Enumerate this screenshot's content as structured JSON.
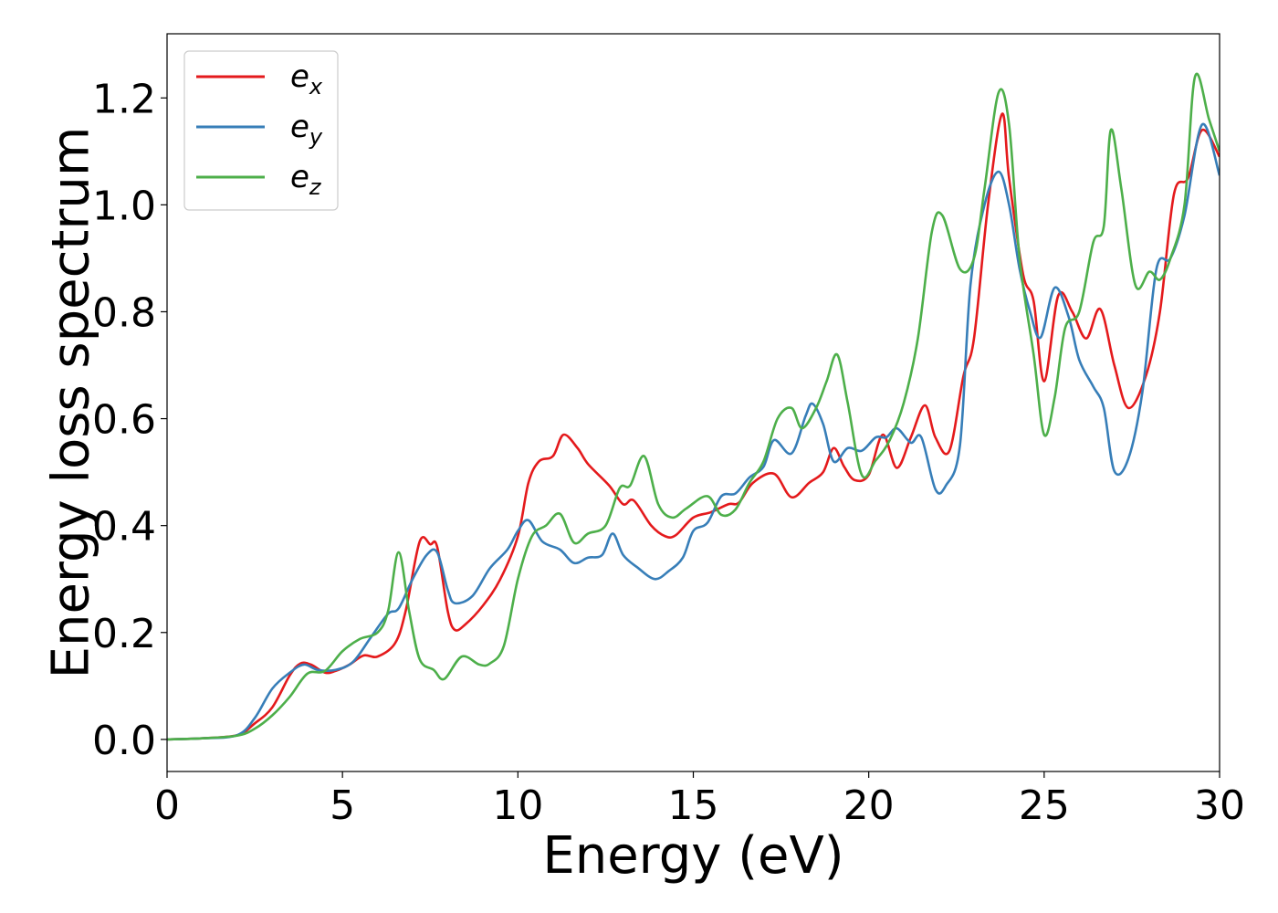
{
  "chart_data": {
    "type": "line",
    "title": "",
    "xlabel": "Energy (eV)",
    "ylabel": "Energy loss spectrum",
    "xlim": [
      0,
      30
    ],
    "ylim": [
      -0.06,
      1.32
    ],
    "xticks": [
      "0",
      "5",
      "10",
      "15",
      "20",
      "25",
      "30"
    ],
    "yticks": [
      "0.0",
      "0.2",
      "0.4",
      "0.6",
      "0.8",
      "1.0",
      "1.2"
    ],
    "grid": false,
    "legend_position": "top-left",
    "series": [
      {
        "name": "e_x",
        "label_base": "e",
        "label_sub": "x",
        "color": "#e41a1c",
        "points": [
          [
            0,
            0
          ],
          [
            1,
            0.002
          ],
          [
            2,
            0.008
          ],
          [
            2.5,
            0.03
          ],
          [
            3,
            0.06
          ],
          [
            3.5,
            0.12
          ],
          [
            3.8,
            0.142
          ],
          [
            4.1,
            0.14
          ],
          [
            4.5,
            0.125
          ],
          [
            4.8,
            0.128
          ],
          [
            5.2,
            0.14
          ],
          [
            5.6,
            0.157
          ],
          [
            6,
            0.155
          ],
          [
            6.5,
            0.18
          ],
          [
            6.8,
            0.24
          ],
          [
            7.2,
            0.37
          ],
          [
            7.5,
            0.365
          ],
          [
            7.7,
            0.36
          ],
          [
            8,
            0.24
          ],
          [
            8.2,
            0.205
          ],
          [
            8.5,
            0.215
          ],
          [
            9,
            0.25
          ],
          [
            9.5,
            0.3
          ],
          [
            10,
            0.38
          ],
          [
            10.3,
            0.48
          ],
          [
            10.6,
            0.52
          ],
          [
            11,
            0.53
          ],
          [
            11.3,
            0.57
          ],
          [
            11.7,
            0.545
          ],
          [
            12,
            0.515
          ],
          [
            12.6,
            0.475
          ],
          [
            13,
            0.44
          ],
          [
            13.3,
            0.447
          ],
          [
            13.8,
            0.4
          ],
          [
            14.2,
            0.38
          ],
          [
            14.5,
            0.382
          ],
          [
            15,
            0.415
          ],
          [
            15.5,
            0.425
          ],
          [
            16,
            0.44
          ],
          [
            16.3,
            0.443
          ],
          [
            16.7,
            0.48
          ],
          [
            17.3,
            0.497
          ],
          [
            17.8,
            0.453
          ],
          [
            18.3,
            0.48
          ],
          [
            18.7,
            0.5
          ],
          [
            19,
            0.545
          ],
          [
            19.3,
            0.51
          ],
          [
            19.6,
            0.485
          ],
          [
            20,
            0.495
          ],
          [
            20.4,
            0.57
          ],
          [
            20.8,
            0.508
          ],
          [
            21.2,
            0.565
          ],
          [
            21.6,
            0.625
          ],
          [
            21.9,
            0.565
          ],
          [
            22.3,
            0.54
          ],
          [
            22.7,
            0.68
          ],
          [
            23,
            0.75
          ],
          [
            23.4,
            1.0
          ],
          [
            23.8,
            1.17
          ],
          [
            24,
            1.05
          ],
          [
            24.4,
            0.87
          ],
          [
            24.7,
            0.82
          ],
          [
            25,
            0.67
          ],
          [
            25.4,
            0.83
          ],
          [
            25.8,
            0.8
          ],
          [
            26.2,
            0.75
          ],
          [
            26.6,
            0.805
          ],
          [
            27,
            0.7
          ],
          [
            27.4,
            0.62
          ],
          [
            27.9,
            0.68
          ],
          [
            28.3,
            0.8
          ],
          [
            28.7,
            1.02
          ],
          [
            29.1,
            1.05
          ],
          [
            29.5,
            1.14
          ],
          [
            30,
            1.09
          ]
        ]
      },
      {
        "name": "e_y",
        "label_base": "e",
        "label_sub": "y",
        "color": "#377eb8",
        "points": [
          [
            0,
            0
          ],
          [
            1,
            0.002
          ],
          [
            2,
            0.008
          ],
          [
            2.5,
            0.04
          ],
          [
            3,
            0.095
          ],
          [
            3.5,
            0.125
          ],
          [
            3.9,
            0.14
          ],
          [
            4.3,
            0.13
          ],
          [
            4.8,
            0.13
          ],
          [
            5.3,
            0.145
          ],
          [
            5.8,
            0.19
          ],
          [
            6.3,
            0.235
          ],
          [
            6.6,
            0.245
          ],
          [
            7,
            0.3
          ],
          [
            7.4,
            0.345
          ],
          [
            7.7,
            0.35
          ],
          [
            8,
            0.28
          ],
          [
            8.2,
            0.255
          ],
          [
            8.7,
            0.268
          ],
          [
            9.2,
            0.32
          ],
          [
            9.7,
            0.355
          ],
          [
            10,
            0.39
          ],
          [
            10.3,
            0.41
          ],
          [
            10.7,
            0.37
          ],
          [
            11.2,
            0.355
          ],
          [
            11.6,
            0.33
          ],
          [
            12,
            0.34
          ],
          [
            12.4,
            0.345
          ],
          [
            12.7,
            0.385
          ],
          [
            13,
            0.345
          ],
          [
            13.4,
            0.322
          ],
          [
            13.9,
            0.3
          ],
          [
            14.3,
            0.315
          ],
          [
            14.7,
            0.34
          ],
          [
            15,
            0.39
          ],
          [
            15.4,
            0.405
          ],
          [
            15.8,
            0.455
          ],
          [
            16.2,
            0.46
          ],
          [
            16.6,
            0.49
          ],
          [
            17,
            0.51
          ],
          [
            17.3,
            0.56
          ],
          [
            17.8,
            0.535
          ],
          [
            18.2,
            0.605
          ],
          [
            18.4,
            0.628
          ],
          [
            18.7,
            0.59
          ],
          [
            19,
            0.52
          ],
          [
            19.4,
            0.545
          ],
          [
            19.8,
            0.54
          ],
          [
            20.2,
            0.565
          ],
          [
            20.5,
            0.565
          ],
          [
            20.8,
            0.582
          ],
          [
            21.2,
            0.555
          ],
          [
            21.5,
            0.565
          ],
          [
            21.9,
            0.468
          ],
          [
            22.2,
            0.475
          ],
          [
            22.6,
            0.55
          ],
          [
            22.9,
            0.85
          ],
          [
            23.3,
            1.0
          ],
          [
            23.7,
            1.062
          ],
          [
            24,
            1.0
          ],
          [
            24.3,
            0.88
          ],
          [
            24.6,
            0.8
          ],
          [
            24.9,
            0.752
          ],
          [
            25.3,
            0.845
          ],
          [
            25.7,
            0.79
          ],
          [
            26,
            0.71
          ],
          [
            26.4,
            0.66
          ],
          [
            26.7,
            0.62
          ],
          [
            27,
            0.502
          ],
          [
            27.4,
            0.525
          ],
          [
            27.8,
            0.65
          ],
          [
            28.2,
            0.88
          ],
          [
            28.6,
            0.9
          ],
          [
            29,
            0.98
          ],
          [
            29.5,
            1.15
          ],
          [
            30,
            1.055
          ]
        ]
      },
      {
        "name": "e_z",
        "label_base": "e",
        "label_sub": "z",
        "color": "#4daf4a",
        "points": [
          [
            0,
            0
          ],
          [
            1,
            0.002
          ],
          [
            2,
            0.007
          ],
          [
            2.5,
            0.02
          ],
          [
            3,
            0.045
          ],
          [
            3.5,
            0.08
          ],
          [
            4,
            0.123
          ],
          [
            4.5,
            0.128
          ],
          [
            5,
            0.165
          ],
          [
            5.5,
            0.188
          ],
          [
            6,
            0.2
          ],
          [
            6.3,
            0.24
          ],
          [
            6.6,
            0.35
          ],
          [
            6.9,
            0.24
          ],
          [
            7.2,
            0.15
          ],
          [
            7.6,
            0.13
          ],
          [
            7.9,
            0.113
          ],
          [
            8.4,
            0.155
          ],
          [
            8.9,
            0.14
          ],
          [
            9.2,
            0.142
          ],
          [
            9.6,
            0.175
          ],
          [
            10,
            0.3
          ],
          [
            10.4,
            0.38
          ],
          [
            10.8,
            0.4
          ],
          [
            11.2,
            0.422
          ],
          [
            11.6,
            0.368
          ],
          [
            12,
            0.385
          ],
          [
            12.5,
            0.4
          ],
          [
            12.9,
            0.47
          ],
          [
            13.2,
            0.475
          ],
          [
            13.6,
            0.53
          ],
          [
            14,
            0.44
          ],
          [
            14.4,
            0.415
          ],
          [
            14.8,
            0.432
          ],
          [
            15.4,
            0.455
          ],
          [
            15.8,
            0.42
          ],
          [
            16.2,
            0.43
          ],
          [
            16.6,
            0.48
          ],
          [
            17,
            0.52
          ],
          [
            17.4,
            0.6
          ],
          [
            17.8,
            0.62
          ],
          [
            18.1,
            0.582
          ],
          [
            18.5,
            0.62
          ],
          [
            18.8,
            0.67
          ],
          [
            19.1,
            0.72
          ],
          [
            19.4,
            0.63
          ],
          [
            19.8,
            0.495
          ],
          [
            20.2,
            0.522
          ],
          [
            20.6,
            0.56
          ],
          [
            21,
            0.63
          ],
          [
            21.4,
            0.75
          ],
          [
            21.8,
            0.95
          ],
          [
            22.1,
            0.98
          ],
          [
            22.6,
            0.88
          ],
          [
            23,
            0.9
          ],
          [
            23.3,
            1.03
          ],
          [
            23.7,
            1.21
          ],
          [
            24,
            1.15
          ],
          [
            24.3,
            0.9
          ],
          [
            24.7,
            0.72
          ],
          [
            25,
            0.57
          ],
          [
            25.3,
            0.64
          ],
          [
            25.6,
            0.77
          ],
          [
            26,
            0.8
          ],
          [
            26.4,
            0.93
          ],
          [
            26.7,
            0.96
          ],
          [
            26.9,
            1.14
          ],
          [
            27.2,
            1.03
          ],
          [
            27.6,
            0.85
          ],
          [
            28,
            0.875
          ],
          [
            28.3,
            0.86
          ],
          [
            28.6,
            0.9
          ],
          [
            29,
            1.0
          ],
          [
            29.3,
            1.24
          ],
          [
            29.7,
            1.16
          ],
          [
            30,
            1.1
          ]
        ]
      }
    ]
  }
}
